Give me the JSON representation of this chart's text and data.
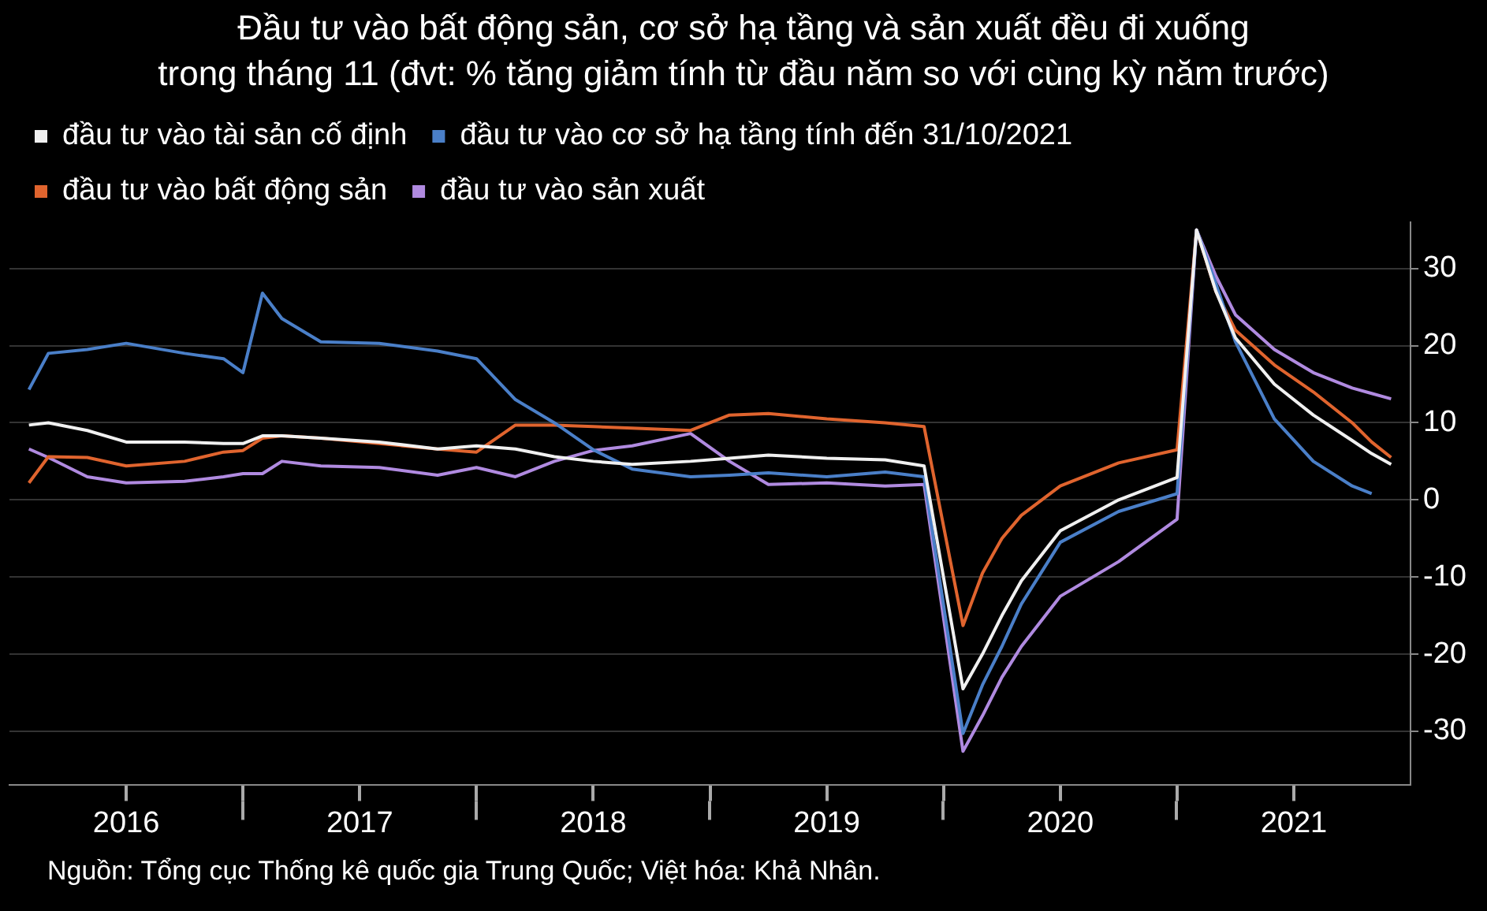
{
  "chart_data": {
    "type": "line",
    "title": "Đầu tư vào bất động sản, cơ sở hạ tầng và sản xuất đều đi xuống\ntrong tháng 11 (đvt: % tăng giảm tính từ đầu năm so với cùng kỳ năm trước)",
    "x": [
      "2016-02",
      "2016-03",
      "2016-05",
      "2016-07",
      "2016-10",
      "2016-12",
      "2017-01",
      "2017-02",
      "2017-03",
      "2017-05",
      "2017-08",
      "2017-11",
      "2018-01",
      "2018-03",
      "2018-05",
      "2018-07",
      "2018-09",
      "2018-12",
      "2019-02",
      "2019-04",
      "2019-07",
      "2019-10",
      "2019-12",
      "2020-02",
      "2020-03",
      "2020-04",
      "2020-05",
      "2020-07",
      "2020-10",
      "2021-01",
      "2021-02",
      "2021-03",
      "2021-04",
      "2021-06",
      "2021-08",
      "2021-10",
      "2021-11",
      "2021-12"
    ],
    "series": [
      {
        "name": "đầu tư vào tài sản cố định",
        "color": "#f0f0f0",
        "values": [
          9.7,
          10,
          9,
          7.5,
          7.5,
          7.3,
          7.3,
          8.3,
          8.3,
          8,
          7.5,
          6.6,
          7,
          6.6,
          5.6,
          5,
          4.6,
          5,
          5.4,
          5.8,
          5.4,
          5.2,
          4.4,
          -24.5,
          -20,
          -15,
          -10.5,
          -4,
          0,
          2.9,
          35,
          27,
          21,
          15,
          11,
          7.7,
          6,
          4.6
        ]
      },
      {
        "name": "đầu tư vào cơ sở hạ tầng tính đến 31/10/2021",
        "color": "#4a7fc8",
        "values": [
          14.3,
          19,
          19.5,
          20.3,
          19,
          18.3,
          16.5,
          26.8,
          23.5,
          20.5,
          20.3,
          19.3,
          18.3,
          13,
          10,
          6.5,
          4,
          3,
          3.2,
          3.5,
          3,
          3.6,
          3,
          -30.3,
          -24,
          -19,
          -13.5,
          -5.5,
          -1.5,
          0.8,
          35,
          28,
          20.5,
          10.5,
          5,
          1.8,
          0.8,
          null
        ]
      },
      {
        "name": "đầu tư vào bất động sản",
        "color": "#e0642e",
        "values": [
          2.2,
          5.6,
          5.5,
          4.4,
          5,
          6.2,
          6.4,
          8,
          8.3,
          8,
          7.3,
          6.6,
          6.2,
          9.7,
          9.7,
          9.5,
          9.3,
          9,
          11,
          11.2,
          10.5,
          10,
          9.5,
          -16.3,
          -9.5,
          -5,
          -2,
          1.8,
          4.8,
          6.5,
          35,
          27,
          22,
          17.5,
          14,
          10,
          7.5,
          5.5
        ]
      },
      {
        "name": "đầu tư vào sản xuất",
        "color": "#b08ae0",
        "values": [
          6.6,
          5.5,
          3,
          2.2,
          2.4,
          3,
          3.4,
          3.4,
          5,
          4.4,
          4.2,
          3.2,
          4.2,
          3,
          5,
          6.4,
          7,
          8.6,
          5,
          2,
          2.2,
          1.8,
          2,
          -32.6,
          -28,
          -23,
          -19,
          -12.5,
          -8,
          -2.5,
          35,
          29,
          24,
          19.5,
          16.5,
          14.5,
          13.8,
          13.1
        ]
      }
    ],
    "xlim": [
      "2016-01",
      "2022-01"
    ],
    "xticks": [
      {
        "value": "2016-07",
        "label": "2016"
      },
      {
        "value": "2017-01",
        "label": null
      },
      {
        "value": "2017-07",
        "label": "2017"
      },
      {
        "value": "2018-01",
        "label": null
      },
      {
        "value": "2018-07",
        "label": "2018"
      },
      {
        "value": "2019-01",
        "label": null
      },
      {
        "value": "2019-07",
        "label": "2019"
      },
      {
        "value": "2020-01",
        "label": null
      },
      {
        "value": "2020-07",
        "label": "2020"
      },
      {
        "value": "2021-01",
        "label": null
      },
      {
        "value": "2021-07",
        "label": "2021"
      }
    ],
    "ylim": [
      -37,
      36
    ],
    "yticks": [
      -30,
      -20,
      -10,
      0,
      10,
      20,
      30
    ],
    "grid": "y",
    "legend": "top left",
    "marker": "none",
    "line_style": "solid",
    "annotations": [
      "Nguồn: Tổng cục Thống kê quốc gia Trung Quốc; Việt hóa: Khả Nhân."
    ]
  }
}
